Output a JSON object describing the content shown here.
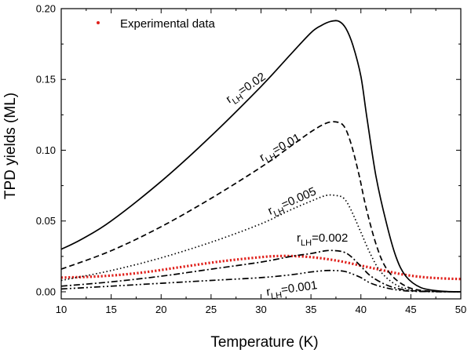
{
  "chart_data": {
    "type": "line",
    "title": "",
    "xlabel": "Temperature (K)",
    "ylabel": "TPD yields (ML)",
    "xlim": [
      10,
      50
    ],
    "ylim": [
      -0.005,
      0.2
    ],
    "xticks": [
      10,
      15,
      20,
      25,
      30,
      35,
      40,
      45,
      50
    ],
    "yticks": [
      0.0,
      0.05,
      0.1,
      0.15,
      0.2
    ],
    "xtick_labels": [
      "10",
      "15",
      "20",
      "25",
      "30",
      "35",
      "40",
      "45",
      "50"
    ],
    "ytick_labels": [
      "0.00",
      "0.05",
      "0.10",
      "0.15",
      "0.20"
    ],
    "grid": false,
    "legend": {
      "position": "top-left",
      "entries": [
        "Experimental data"
      ]
    },
    "annotations": [
      {
        "base": "r",
        "sub": "LH",
        "value": "=0.02"
      },
      {
        "base": "r",
        "sub": "LH",
        "value": "=0.01"
      },
      {
        "base": "r",
        "sub": "LH",
        "value": "=0.005"
      },
      {
        "base": "r",
        "sub": "LH",
        "value": "=0.002"
      },
      {
        "base": "r",
        "sub": "LH",
        "value": "=0.001"
      }
    ],
    "series": [
      {
        "name": "Experimental data",
        "color": "#e0201b",
        "style": "dotted",
        "x": [
          10,
          14,
          18,
          22,
          26,
          30,
          32,
          34,
          36,
          38,
          40,
          42,
          44,
          46,
          48,
          50
        ],
        "y": [
          0.01,
          0.011,
          0.0135,
          0.0175,
          0.0215,
          0.0245,
          0.0253,
          0.025,
          0.0237,
          0.0215,
          0.0185,
          0.0155,
          0.0125,
          0.0105,
          0.0095,
          0.009
        ]
      },
      {
        "name": "r_LH=0.02",
        "color": "#000000",
        "style": "solid",
        "x": [
          10,
          12,
          15,
          20,
          25,
          30,
          33,
          35,
          36,
          37,
          37.8,
          38.5,
          39.2,
          40,
          40.6,
          41.5,
          42.5,
          43.5,
          44.5,
          46,
          48,
          50
        ],
        "y": [
          0.03,
          0.037,
          0.05,
          0.078,
          0.11,
          0.145,
          0.168,
          0.183,
          0.188,
          0.191,
          0.191,
          0.186,
          0.174,
          0.152,
          0.123,
          0.082,
          0.05,
          0.025,
          0.011,
          0.003,
          0.0005,
          0.0
        ]
      },
      {
        "name": "r_LH=0.01",
        "color": "#000000",
        "style": "dashed",
        "x": [
          10,
          15,
          20,
          25,
          30,
          33,
          35,
          36.5,
          37.5,
          38.3,
          39,
          39.8,
          40.5,
          41.5,
          42.5,
          44,
          46,
          50
        ],
        "y": [
          0.016,
          0.029,
          0.046,
          0.066,
          0.088,
          0.103,
          0.113,
          0.119,
          0.12,
          0.117,
          0.105,
          0.083,
          0.06,
          0.034,
          0.017,
          0.006,
          0.001,
          0.0
        ]
      },
      {
        "name": "r_LH=0.005",
        "color": "#000000",
        "style": "dotted",
        "x": [
          10,
          15,
          20,
          25,
          30,
          33,
          35,
          36.5,
          37.5,
          38.3,
          39,
          40,
          41,
          42,
          43.5,
          45,
          47,
          50
        ],
        "y": [
          0.008,
          0.015,
          0.024,
          0.035,
          0.048,
          0.058,
          0.064,
          0.068,
          0.068,
          0.066,
          0.058,
          0.042,
          0.026,
          0.014,
          0.005,
          0.0015,
          0.0002,
          0.0
        ]
      },
      {
        "name": "r_LH=0.002",
        "color": "#000000",
        "style": "dashdot",
        "x": [
          10,
          15,
          20,
          25,
          30,
          33,
          35,
          36.5,
          37.5,
          38.3,
          39,
          40,
          41,
          42.5,
          44,
          46,
          50
        ],
        "y": [
          0.004,
          0.007,
          0.011,
          0.016,
          0.021,
          0.025,
          0.027,
          0.029,
          0.029,
          0.028,
          0.025,
          0.018,
          0.011,
          0.005,
          0.0018,
          0.0004,
          0.0
        ]
      },
      {
        "name": "r_LH=0.001",
        "color": "#000000",
        "style": "dashdotdot",
        "x": [
          10,
          15,
          20,
          25,
          30,
          33,
          35,
          36.5,
          37.5,
          38.3,
          39,
          40,
          41,
          42.5,
          44,
          46,
          50
        ],
        "y": [
          0.002,
          0.004,
          0.006,
          0.008,
          0.01,
          0.012,
          0.014,
          0.015,
          0.015,
          0.0145,
          0.013,
          0.01,
          0.006,
          0.0028,
          0.001,
          0.0002,
          0.0
        ]
      }
    ]
  }
}
